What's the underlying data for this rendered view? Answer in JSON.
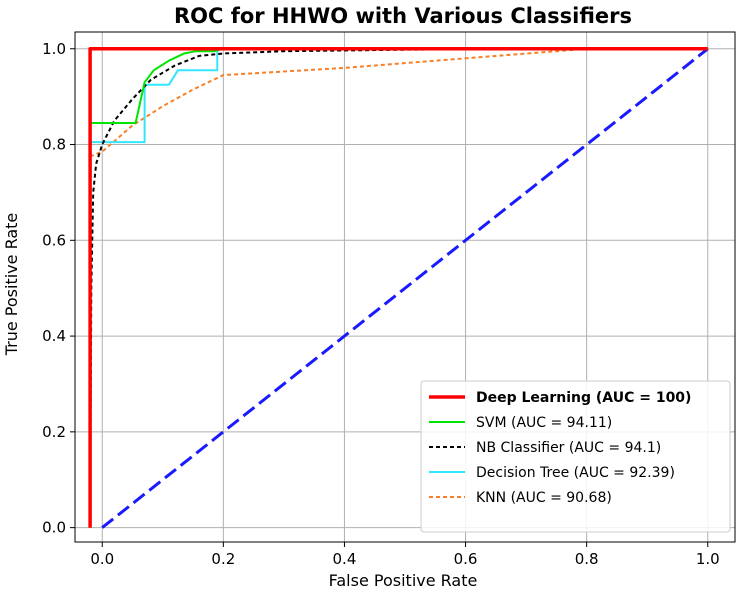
{
  "chart_data": {
    "type": "line",
    "title": "ROC for HHWO with Various Classifiers",
    "xlabel": "False Positive Rate",
    "ylabel": "True Positive Rate",
    "xlim": [
      -0.045,
      1.045
    ],
    "ylim": [
      -0.03,
      1.035
    ],
    "xticks": [
      "0.0",
      "0.2",
      "0.4",
      "0.6",
      "0.8",
      "1.0"
    ],
    "yticks": [
      "0.0",
      "0.2",
      "0.4",
      "0.6",
      "0.8",
      "1.0"
    ],
    "grid": true,
    "legend_position": "lower-right",
    "series": [
      {
        "name": "Deep Learning (AUC = 100)",
        "color": "#ff0000",
        "style": "solid",
        "bold_label": true,
        "points": [
          [
            -0.02,
            0.0
          ],
          [
            -0.02,
            1.0
          ],
          [
            1.0,
            1.0
          ]
        ]
      },
      {
        "name": "SVM (AUC = 94.11)",
        "color": "#00e600",
        "style": "solid",
        "bold_label": false,
        "points": [
          [
            -0.02,
            0.0
          ],
          [
            -0.02,
            0.845
          ],
          [
            0.055,
            0.845
          ],
          [
            0.07,
            0.93
          ],
          [
            0.085,
            0.955
          ],
          [
            0.11,
            0.975
          ],
          [
            0.135,
            0.99
          ],
          [
            0.155,
            0.995
          ],
          [
            0.185,
            0.995
          ],
          [
            0.2,
            1.0
          ],
          [
            1.0,
            1.0
          ]
        ]
      },
      {
        "name": "NB Classifier (AUC = 94.1)",
        "color": "#000000",
        "style": "dotted",
        "bold_label": false,
        "points": [
          [
            -0.02,
            0.0
          ],
          [
            -0.018,
            0.5
          ],
          [
            -0.015,
            0.7
          ],
          [
            -0.01,
            0.76
          ],
          [
            0.0,
            0.8
          ],
          [
            0.02,
            0.85
          ],
          [
            0.05,
            0.895
          ],
          [
            0.08,
            0.935
          ],
          [
            0.12,
            0.965
          ],
          [
            0.16,
            0.985
          ],
          [
            0.2,
            0.99
          ],
          [
            0.3,
            0.995
          ],
          [
            0.5,
            0.998
          ],
          [
            0.7,
            1.0
          ],
          [
            1.0,
            1.0
          ]
        ]
      },
      {
        "name": "Decision Tree (AUC = 92.39)",
        "color": "#33e6ff",
        "style": "solid",
        "bold_label": false,
        "points": [
          [
            -0.02,
            0.0
          ],
          [
            -0.02,
            0.805
          ],
          [
            0.07,
            0.805
          ],
          [
            0.07,
            0.925
          ],
          [
            0.11,
            0.925
          ],
          [
            0.125,
            0.955
          ],
          [
            0.19,
            0.955
          ],
          [
            0.19,
            1.0
          ],
          [
            1.0,
            1.0
          ]
        ]
      },
      {
        "name": "KNN (AUC = 90.68)",
        "color": "#f77f26",
        "style": "dotted",
        "bold_label": false,
        "points": [
          [
            -0.02,
            0.0
          ],
          [
            -0.02,
            0.775
          ],
          [
            0.0,
            0.785
          ],
          [
            0.05,
            0.84
          ],
          [
            0.1,
            0.88
          ],
          [
            0.15,
            0.915
          ],
          [
            0.2,
            0.945
          ],
          [
            0.4,
            0.96
          ],
          [
            0.6,
            0.98
          ],
          [
            0.8,
            1.0
          ],
          [
            1.0,
            1.0
          ]
        ]
      },
      {
        "name": "",
        "color": "#1a1aff",
        "style": "dashed",
        "in_legend": false,
        "points": [
          [
            0.0,
            0.0
          ],
          [
            1.0,
            1.0
          ]
        ]
      }
    ]
  }
}
